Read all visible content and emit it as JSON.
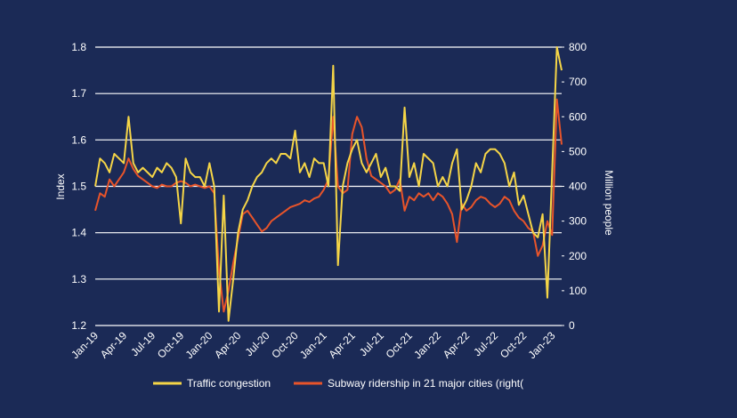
{
  "chart_data": {
    "type": "line",
    "categories": [
      "Jan-19",
      null,
      null,
      null,
      null,
      null,
      "Apr-19",
      null,
      null,
      null,
      null,
      null,
      "Jul-19",
      null,
      null,
      null,
      null,
      null,
      "Oct-19",
      null,
      null,
      null,
      null,
      null,
      "Jan-20",
      null,
      null,
      null,
      null,
      null,
      "Apr-20",
      null,
      null,
      null,
      null,
      null,
      "Jul-20",
      null,
      null,
      null,
      null,
      null,
      "Oct-20",
      null,
      null,
      null,
      null,
      null,
      "Jan-21",
      null,
      null,
      null,
      null,
      null,
      "Apr-21",
      null,
      null,
      null,
      null,
      null,
      "Jul-21",
      null,
      null,
      null,
      null,
      null,
      "Oct-21",
      null,
      null,
      null,
      null,
      null,
      "Jan-22",
      null,
      null,
      null,
      null,
      null,
      "Apr-22",
      null,
      null,
      null,
      null,
      null,
      "Jul-22",
      null,
      null,
      null,
      null,
      null,
      "Oct-22",
      null,
      null,
      null,
      null,
      null,
      "Jan-23",
      null,
      null
    ],
    "series": [
      {
        "name": "Traffic congestion",
        "color": "#f5d547",
        "axis": "y",
        "values": [
          1.5,
          1.56,
          1.55,
          1.53,
          1.57,
          1.56,
          1.55,
          1.65,
          1.55,
          1.53,
          1.54,
          1.53,
          1.52,
          1.54,
          1.53,
          1.55,
          1.54,
          1.52,
          1.42,
          1.56,
          1.53,
          1.52,
          1.52,
          1.5,
          1.55,
          1.5,
          1.23,
          1.48,
          1.21,
          1.3,
          1.4,
          1.45,
          1.47,
          1.5,
          1.52,
          1.53,
          1.55,
          1.56,
          1.55,
          1.57,
          1.57,
          1.56,
          1.62,
          1.53,
          1.55,
          1.52,
          1.56,
          1.55,
          1.55,
          1.5,
          1.76,
          1.33,
          1.5,
          1.55,
          1.58,
          1.6,
          1.55,
          1.53,
          1.55,
          1.57,
          1.52,
          1.54,
          1.5,
          1.5,
          1.49,
          1.67,
          1.52,
          1.55,
          1.5,
          1.57,
          1.56,
          1.55,
          1.5,
          1.52,
          1.5,
          1.55,
          1.58,
          1.45,
          1.47,
          1.5,
          1.55,
          1.53,
          1.57,
          1.58,
          1.58,
          1.57,
          1.55,
          1.5,
          1.53,
          1.46,
          1.48,
          1.44,
          1.4,
          1.39,
          1.44,
          1.26,
          1.53,
          1.8,
          1.75
        ]
      },
      {
        "name": "Subway ridership in 21 major cities (right(",
        "color": "#e8542a",
        "axis": "y2",
        "values": [
          330,
          380,
          370,
          420,
          400,
          420,
          440,
          480,
          450,
          430,
          420,
          410,
          400,
          395,
          405,
          400,
          400,
          410,
          415,
          410,
          400,
          405,
          400,
          395,
          400,
          380,
          160,
          40,
          100,
          180,
          250,
          320,
          330,
          310,
          290,
          270,
          280,
          300,
          310,
          320,
          330,
          340,
          345,
          350,
          360,
          355,
          365,
          370,
          390,
          420,
          600,
          400,
          380,
          390,
          550,
          600,
          570,
          480,
          430,
          420,
          410,
          400,
          380,
          390,
          420,
          330,
          370,
          360,
          380,
          370,
          380,
          360,
          380,
          370,
          350,
          320,
          240,
          350,
          330,
          340,
          360,
          370,
          365,
          350,
          340,
          350,
          370,
          360,
          330,
          310,
          300,
          280,
          270,
          200,
          230,
          300,
          260,
          650,
          520
        ]
      }
    ],
    "y_label": "Index",
    "y2_label": "Million people",
    "ylim": [
      1.2,
      1.8
    ],
    "yticks": [
      1.2,
      1.3,
      1.4,
      1.5,
      1.6,
      1.7,
      1.8
    ],
    "y2lim": [
      0,
      800
    ],
    "y2ticks": [
      0,
      100,
      200,
      300,
      400,
      500,
      600,
      700,
      800
    ],
    "grid": true,
    "legend": "bottom"
  }
}
